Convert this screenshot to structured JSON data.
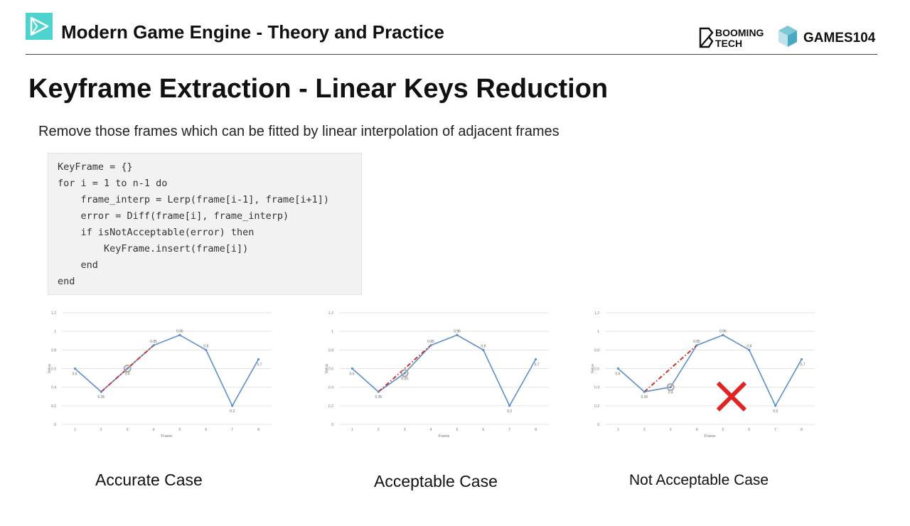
{
  "header": {
    "course_title": "Modern Game Engine - Theory and Practice",
    "brand_booming_line1": "BOOMING",
    "brand_booming_line2": "TECH",
    "brand_games": "GAMES104"
  },
  "slide": {
    "title": "Keyframe Extraction - Linear Keys Reduction",
    "subtitle": "Remove those frames which can be fitted by linear interpolation of adjacent frames"
  },
  "code": {
    "lines": [
      "KeyFrame = {}",
      "for i = 1 to n-1 do",
      "    frame_interp = Lerp(frame[i-1], frame[i+1])",
      "    error = Diff(frame[i], frame_interp)",
      "    if isNotAcceptable(error) then",
      "        KeyFrame.insert(frame[i])",
      "    end",
      "end"
    ]
  },
  "captions": [
    "Accurate Case",
    "Acceptable Case",
    "Not Acceptable Case"
  ],
  "colors": {
    "line": "#5b8fc9",
    "interp": "#d4302b",
    "grid": "#e3e3e3",
    "marker": "#b0a4a4",
    "cross": "#e02424",
    "accent": "#4fd3cf"
  },
  "chart_data": [
    {
      "type": "line",
      "title": "",
      "xlabel": "Frame",
      "ylabel": "Value",
      "x": [
        1,
        2,
        3,
        4,
        5,
        6,
        7,
        8
      ],
      "ylim": [
        0,
        1.2
      ],
      "yticks": [
        0,
        0.2,
        0.4,
        0.6,
        0.8,
        1,
        1.2
      ],
      "series": [
        {
          "values": [
            0.6,
            0.35,
            0.6,
            0.85,
            0.96,
            0.8,
            0.2,
            0.7
          ]
        }
      ],
      "data_labels": [
        "0.6",
        "0.35",
        "0.6",
        "0.85",
        "0.96",
        "0.8",
        "0.2",
        "0.7"
      ],
      "interpolation": {
        "from": [
          2,
          0.35
        ],
        "to": [
          4,
          0.85
        ]
      },
      "highlight_frame": 3,
      "grid": true,
      "rejected": false
    },
    {
      "type": "line",
      "title": "",
      "xlabel": "Frame",
      "ylabel": "Value",
      "x": [
        1,
        2,
        3,
        4,
        5,
        6,
        7,
        8
      ],
      "ylim": [
        0,
        1.2
      ],
      "yticks": [
        0,
        0.2,
        0.4,
        0.6,
        0.8,
        1,
        1.2
      ],
      "series": [
        {
          "values": [
            0.6,
            0.35,
            0.55,
            0.85,
            0.96,
            0.8,
            0.2,
            0.7
          ]
        }
      ],
      "data_labels": [
        "0.6",
        "0.35",
        "0.55",
        "0.85",
        "0.96",
        "0.8",
        "0.2",
        "0.7"
      ],
      "interpolation": {
        "from": [
          2,
          0.35
        ],
        "to": [
          4,
          0.85
        ]
      },
      "highlight_frame": 3,
      "grid": true,
      "rejected": false
    },
    {
      "type": "line",
      "title": "",
      "xlabel": "Frame",
      "ylabel": "Value",
      "x": [
        1,
        2,
        3,
        4,
        5,
        6,
        7,
        8
      ],
      "ylim": [
        0,
        1.2
      ],
      "yticks": [
        0,
        0.2,
        0.4,
        0.6,
        0.8,
        1,
        1.2
      ],
      "series": [
        {
          "values": [
            0.6,
            0.35,
            0.4,
            0.85,
            0.96,
            0.8,
            0.2,
            0.7
          ]
        }
      ],
      "data_labels": [
        "0.6",
        "0.35",
        "0.4",
        "0.85",
        "0.96",
        "0.8",
        "0.2",
        "0.7"
      ],
      "interpolation": {
        "from": [
          2,
          0.35
        ],
        "to": [
          4,
          0.85
        ]
      },
      "highlight_frame": 3,
      "grid": true,
      "rejected": true
    }
  ]
}
